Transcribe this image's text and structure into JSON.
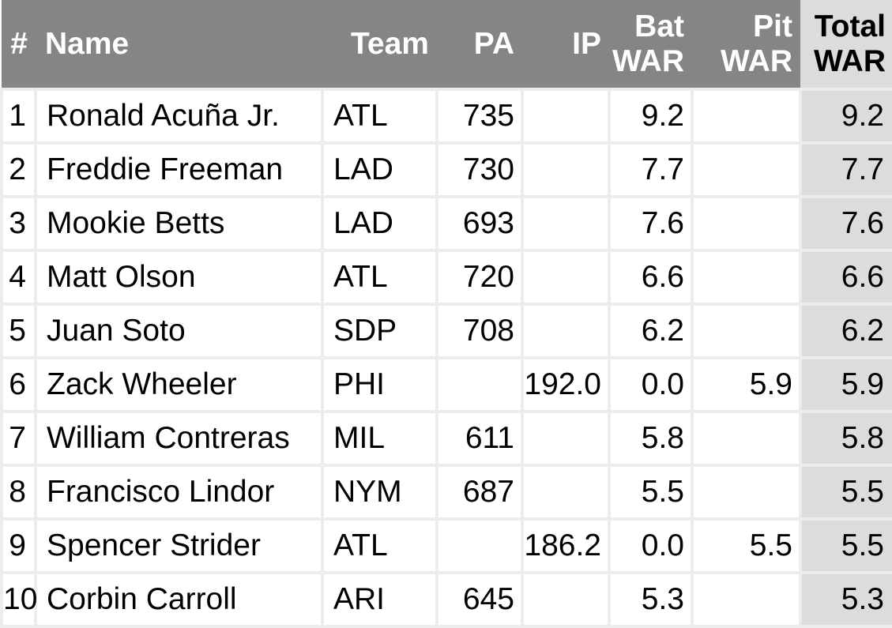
{
  "colors": {
    "header_bg": "#858585",
    "header_text": "#ffffff",
    "total_column_bg": "#dcdcdc",
    "grid_line": "#ececec",
    "row_bg": "#ffffff",
    "body_text": "#000000"
  },
  "table": {
    "columns": [
      {
        "key": "num",
        "label": "#"
      },
      {
        "key": "name",
        "label": "Name"
      },
      {
        "key": "team",
        "label": "Team"
      },
      {
        "key": "pa",
        "label": "PA"
      },
      {
        "key": "ip",
        "label": "IP"
      },
      {
        "key": "bat_war",
        "label": "Bat\nWAR"
      },
      {
        "key": "pit_war",
        "label": "Pit\nWAR"
      },
      {
        "key": "total_war",
        "label": "Total\nWAR"
      }
    ],
    "rows": [
      {
        "num": "1",
        "name": "Ronald Acuña Jr.",
        "team": "ATL",
        "pa": "735",
        "ip": "",
        "bat_war": "9.2",
        "pit_war": "",
        "total_war": "9.2"
      },
      {
        "num": "2",
        "name": "Freddie Freeman",
        "team": "LAD",
        "pa": "730",
        "ip": "",
        "bat_war": "7.7",
        "pit_war": "",
        "total_war": "7.7"
      },
      {
        "num": "3",
        "name": "Mookie Betts",
        "team": "LAD",
        "pa": "693",
        "ip": "",
        "bat_war": "7.6",
        "pit_war": "",
        "total_war": "7.6"
      },
      {
        "num": "4",
        "name": "Matt Olson",
        "team": "ATL",
        "pa": "720",
        "ip": "",
        "bat_war": "6.6",
        "pit_war": "",
        "total_war": "6.6"
      },
      {
        "num": "5",
        "name": "Juan Soto",
        "team": "SDP",
        "pa": "708",
        "ip": "",
        "bat_war": "6.2",
        "pit_war": "",
        "total_war": "6.2"
      },
      {
        "num": "6",
        "name": "Zack Wheeler",
        "team": "PHI",
        "pa": "",
        "ip": "192.0",
        "bat_war": "0.0",
        "pit_war": "5.9",
        "total_war": "5.9"
      },
      {
        "num": "7",
        "name": "William Contreras",
        "team": "MIL",
        "pa": "611",
        "ip": "",
        "bat_war": "5.8",
        "pit_war": "",
        "total_war": "5.8"
      },
      {
        "num": "8",
        "name": "Francisco Lindor",
        "team": "NYM",
        "pa": "687",
        "ip": "",
        "bat_war": "5.5",
        "pit_war": "",
        "total_war": "5.5"
      },
      {
        "num": "9",
        "name": "Spencer Strider",
        "team": "ATL",
        "pa": "",
        "ip": "186.2",
        "bat_war": "0.0",
        "pit_war": "5.5",
        "total_war": "5.5"
      },
      {
        "num": "10",
        "name": "Corbin Carroll",
        "team": "ARI",
        "pa": "645",
        "ip": "",
        "bat_war": "5.3",
        "pit_war": "",
        "total_war": "5.3"
      }
    ]
  }
}
